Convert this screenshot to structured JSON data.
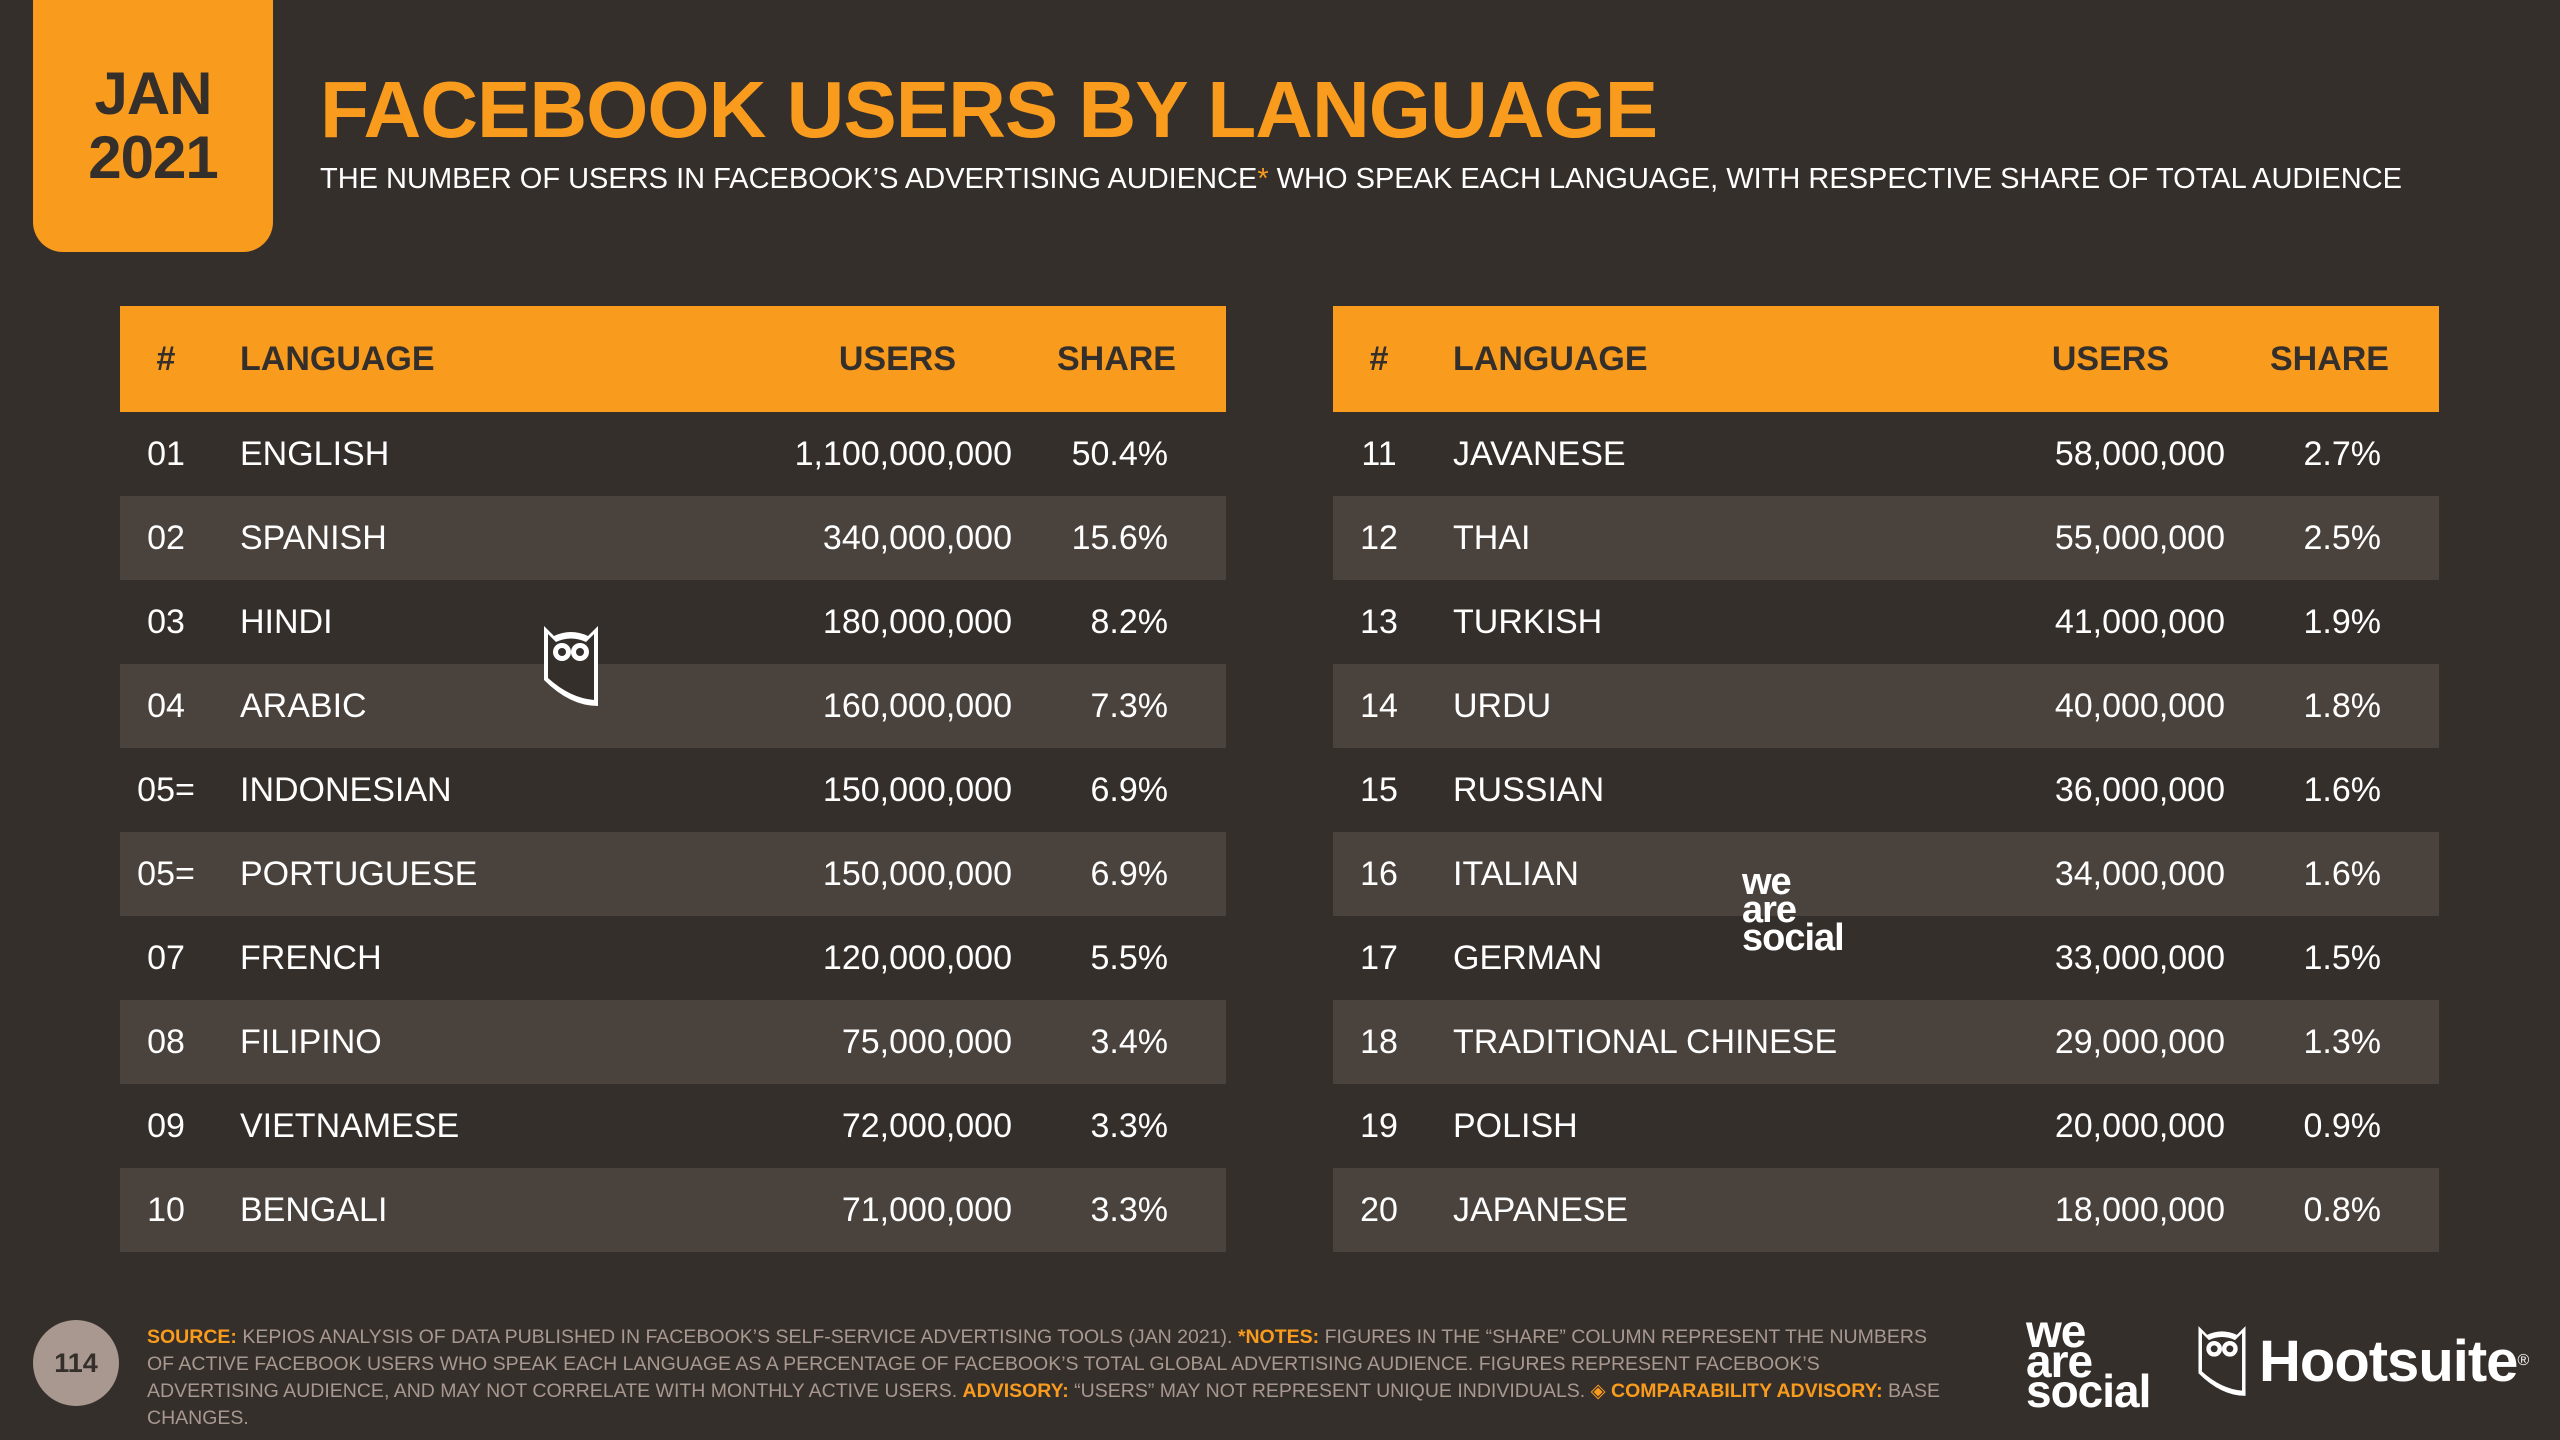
{
  "badge": {
    "month": "JAN",
    "year": "2021"
  },
  "title": "FACEBOOK USERS BY LANGUAGE",
  "subtitle": {
    "before": "THE NUMBER OF USERS IN FACEBOOK’S ADVERTISING AUDIENCE",
    "asterisk": "*",
    "after": " WHO SPEAK EACH LANGUAGE, WITH RESPECTIVE SHARE OF TOTAL AUDIENCE"
  },
  "headers": {
    "num": "#",
    "language": "LANGUAGE",
    "users": "USERS",
    "share": "SHARE"
  },
  "left_rows": [
    {
      "num": "01",
      "language": "ENGLISH",
      "users": "1,100,000,000",
      "share": "50.4%"
    },
    {
      "num": "02",
      "language": "SPANISH",
      "users": "340,000,000",
      "share": "15.6%"
    },
    {
      "num": "03",
      "language": "HINDI",
      "users": "180,000,000",
      "share": "8.2%"
    },
    {
      "num": "04",
      "language": "ARABIC",
      "users": "160,000,000",
      "share": "7.3%"
    },
    {
      "num": "05=",
      "language": "INDONESIAN",
      "users": "150,000,000",
      "share": "6.9%"
    },
    {
      "num": "05=",
      "language": "PORTUGUESE",
      "users": "150,000,000",
      "share": "6.9%"
    },
    {
      "num": "07",
      "language": "FRENCH",
      "users": "120,000,000",
      "share": "5.5%"
    },
    {
      "num": "08",
      "language": "FILIPINO",
      "users": "75,000,000",
      "share": "3.4%"
    },
    {
      "num": "09",
      "language": "VIETNAMESE",
      "users": "72,000,000",
      "share": "3.3%"
    },
    {
      "num": "10",
      "language": "BENGALI",
      "users": "71,000,000",
      "share": "3.3%"
    }
  ],
  "right_rows": [
    {
      "num": "11",
      "language": "JAVANESE",
      "users": "58,000,000",
      "share": "2.7%"
    },
    {
      "num": "12",
      "language": "THAI",
      "users": "55,000,000",
      "share": "2.5%"
    },
    {
      "num": "13",
      "language": "TURKISH",
      "users": "41,000,000",
      "share": "1.9%"
    },
    {
      "num": "14",
      "language": "URDU",
      "users": "40,000,000",
      "share": "1.8%"
    },
    {
      "num": "15",
      "language": "RUSSIAN",
      "users": "36,000,000",
      "share": "1.6%"
    },
    {
      "num": "16",
      "language": "ITALIAN",
      "users": "34,000,000",
      "share": "1.6%"
    },
    {
      "num": "17",
      "language": "GERMAN",
      "users": "33,000,000",
      "share": "1.5%"
    },
    {
      "num": "18",
      "language": "TRADITIONAL CHINESE",
      "users": "29,000,000",
      "share": "1.3%"
    },
    {
      "num": "19",
      "language": "POLISH",
      "users": "20,000,000",
      "share": "0.9%"
    },
    {
      "num": "20",
      "language": "JAPANESE",
      "users": "18,000,000",
      "share": "0.8%"
    }
  ],
  "footer": {
    "page_number": "114",
    "source_label": "SOURCE:",
    "source_text": " KEPIOS ANALYSIS OF DATA PUBLISHED IN FACEBOOK’S SELF-SERVICE ADVERTISING TOOLS (JAN 2021). ",
    "notes_label": "*NOTES:",
    "notes_text": " FIGURES IN THE “SHARE” COLUMN REPRESENT THE NUMBERS OF ACTIVE FACEBOOK USERS WHO SPEAK EACH LANGUAGE AS A PERCENTAGE OF FACEBOOK’S TOTAL GLOBAL ADVERTISING AUDIENCE. FIGURES REPRESENT FACEBOOK’S ADVERTISING AUDIENCE, AND MAY NOT CORRELATE WITH MONTHLY ACTIVE USERS. ",
    "advisory_label": "ADVISORY:",
    "advisory_text": " “USERS” MAY NOT REPRESENT UNIQUE INDIVIDUALS. ",
    "comparability_label": "◈ COMPARABILITY ADVISORY:",
    "comparability_text": " BASE CHANGES."
  },
  "logos": {
    "was_line1": "we",
    "was_line2": "are",
    "was_line3": "social",
    "hootsuite": "Hootsuite",
    "registered": "®"
  },
  "icons": {
    "owl": "hootsuite-owl-icon"
  },
  "colors": {
    "accent": "#f99b1c",
    "background": "#352f2b",
    "row_alt": "#4a423d",
    "muted": "#a89890"
  }
}
